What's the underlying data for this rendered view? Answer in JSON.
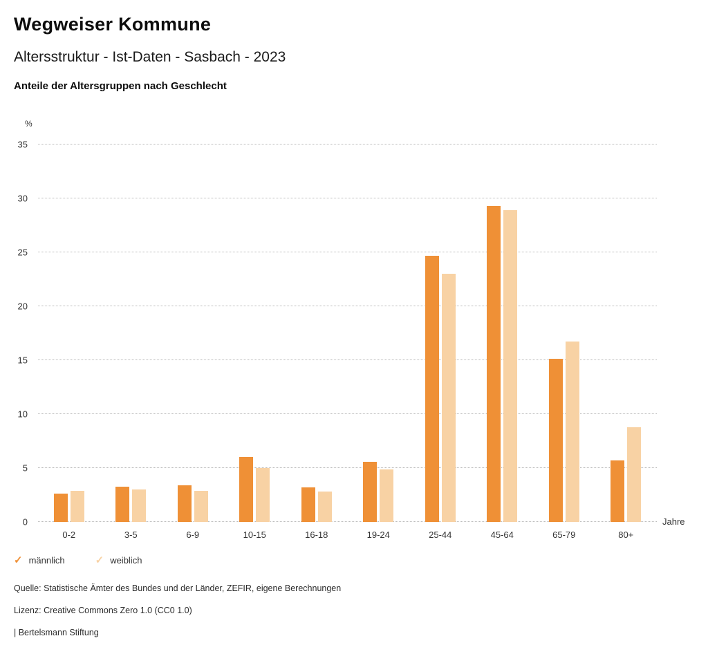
{
  "header": {
    "title": "Wegweiser Kommune",
    "subtitle": "Altersstruktur - Ist-Daten - Sasbach - 2023",
    "chart_heading": "Anteile der Altersgruppen nach Geschlecht"
  },
  "chart_data": {
    "type": "bar",
    "title": "Anteile der Altersgruppen nach Geschlecht",
    "categories": [
      "0-2",
      "3-5",
      "6-9",
      "10-15",
      "16-18",
      "19-24",
      "25-44",
      "45-64",
      "65-79",
      "80+"
    ],
    "series": [
      {
        "name": "männlich",
        "color": "#ef9036",
        "values": [
          2.6,
          3.3,
          3.4,
          6.0,
          3.2,
          5.6,
          24.7,
          29.3,
          15.1,
          5.7
        ]
      },
      {
        "name": "weiblich",
        "color": "#f8d2a4",
        "values": [
          2.9,
          3.0,
          2.9,
          5.0,
          2.8,
          4.9,
          23.0,
          28.9,
          16.7,
          8.8
        ]
      }
    ],
    "ylabel": "%",
    "xlabel": "Jahre",
    "ylim": [
      0,
      35
    ],
    "yticks": [
      0,
      5,
      10,
      15,
      20,
      25,
      30,
      35
    ],
    "grid": true,
    "legend_position": "bottom",
    "legend_marker": "✓"
  },
  "footer": {
    "source": "Quelle: Statistische Ämter des Bundes und der Länder, ZEFIR, eigene Berechnungen",
    "license": "Lizenz: Creative Commons Zero 1.0 (CC0 1.0)",
    "attribution": "| Bertelsmann Stiftung"
  }
}
